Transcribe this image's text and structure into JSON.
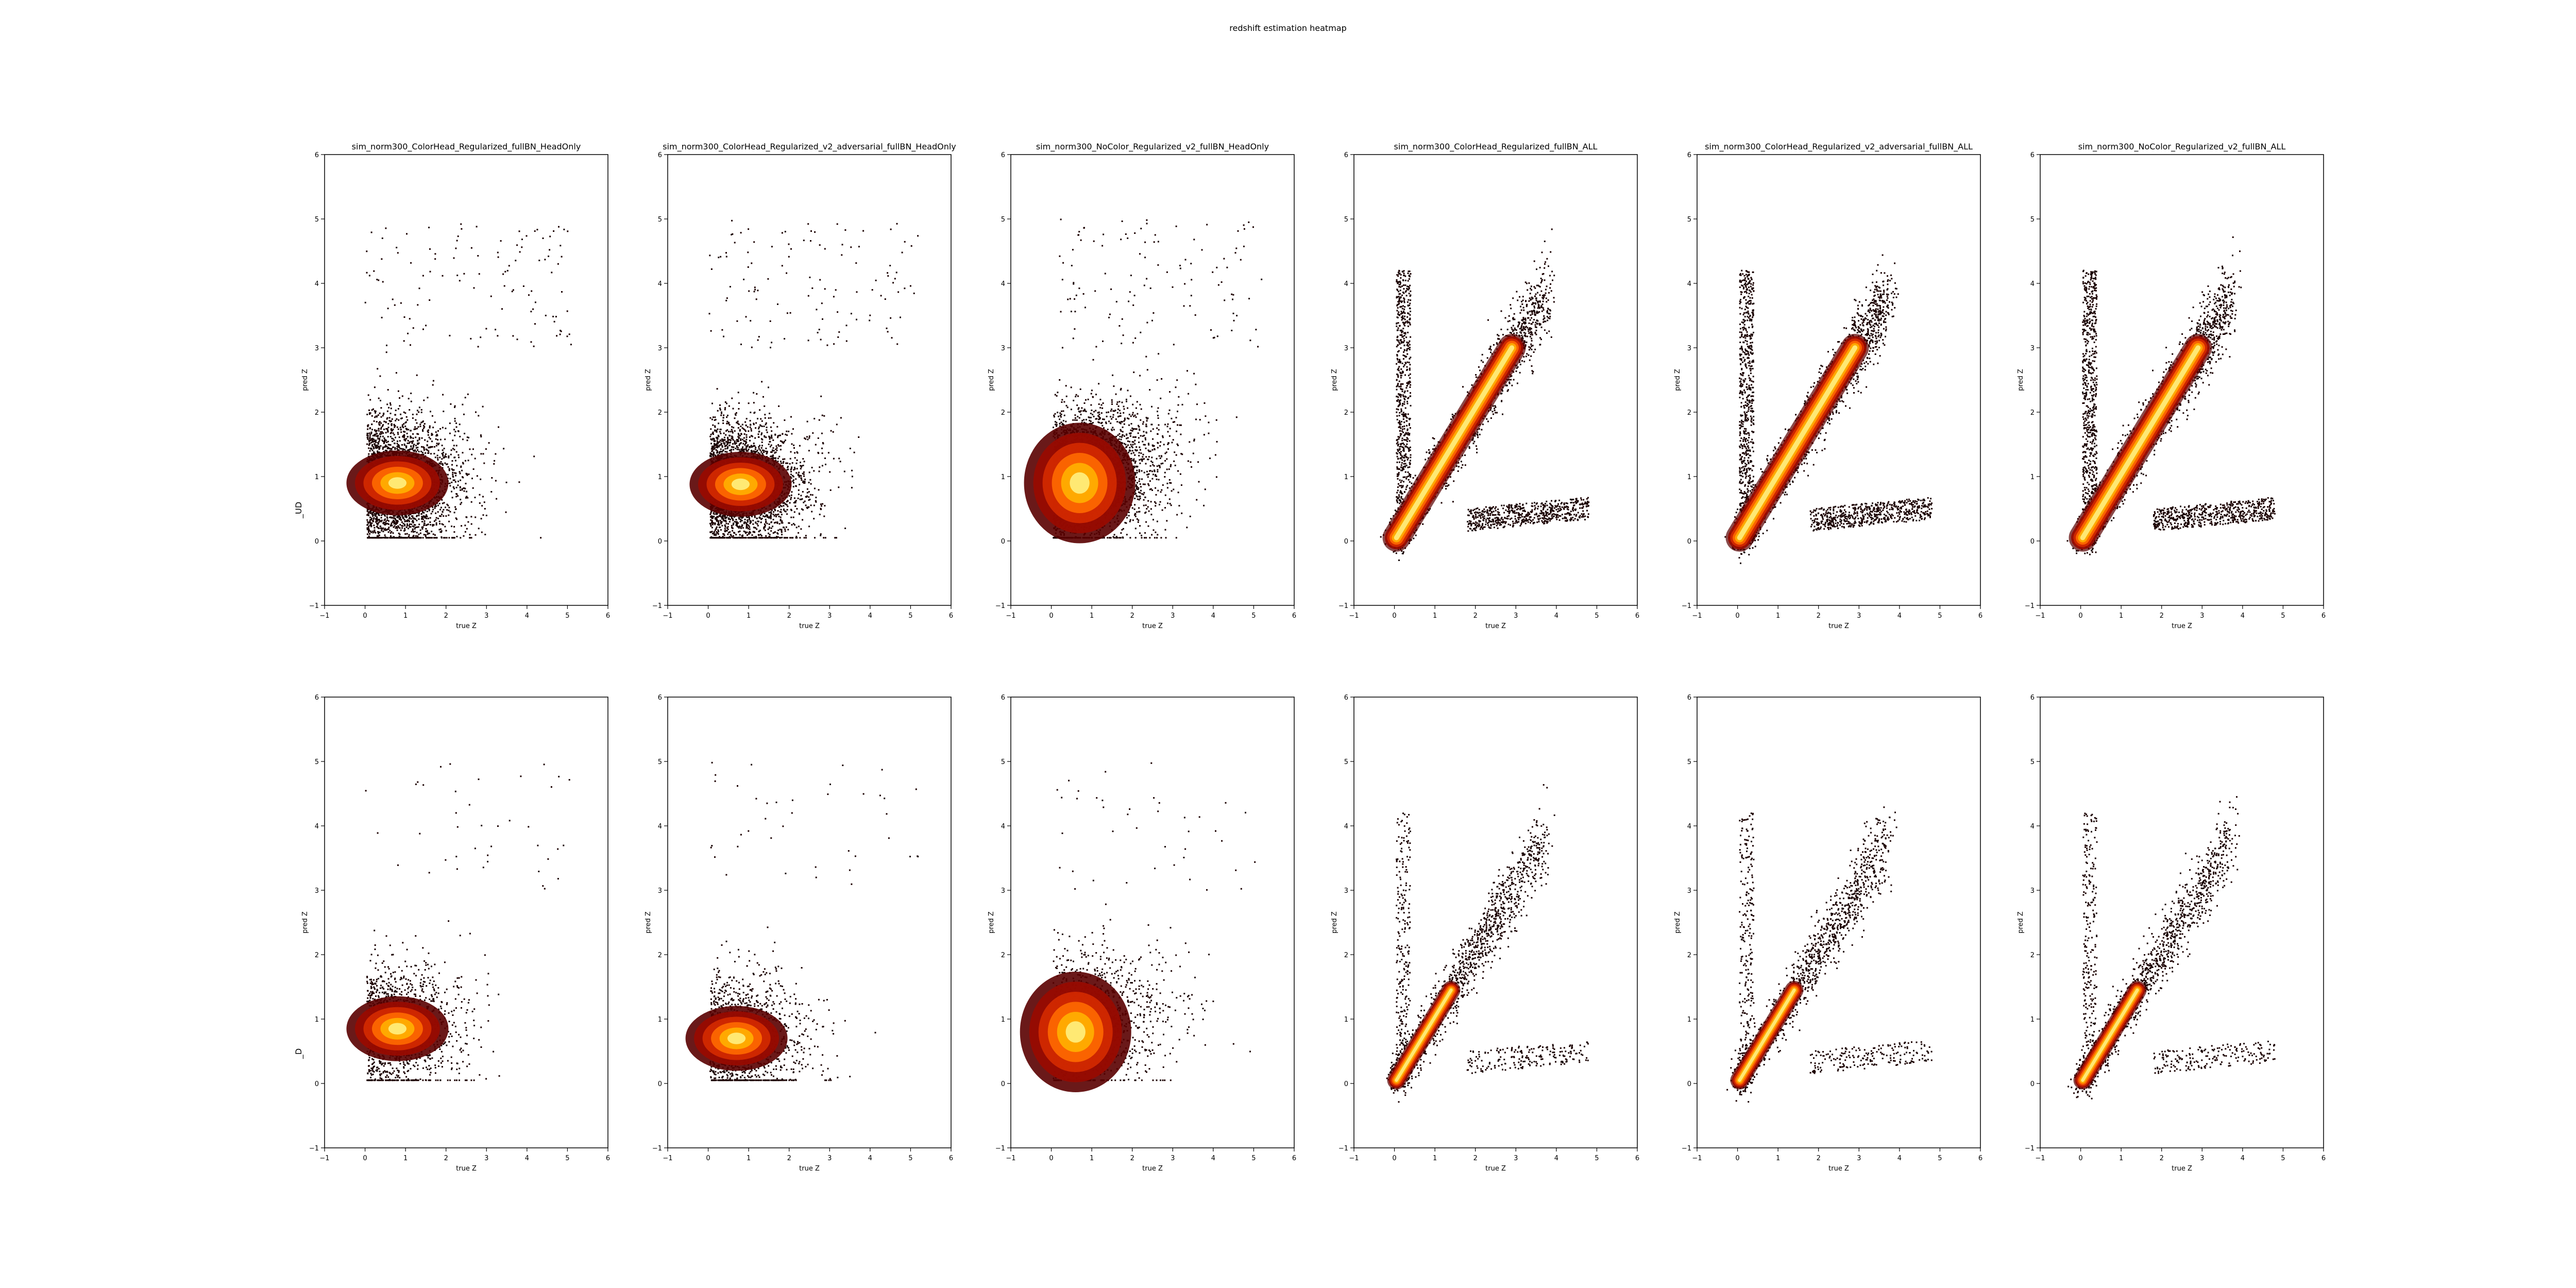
{
  "figure": {
    "suptitle": "redshift estimation heatmap",
    "row_labels": [
      "_UD",
      "_D"
    ]
  },
  "chart_data": [
    {
      "type": "heatmap",
      "row": 0,
      "col": 0,
      "title": "sim_norm300_ColorHead_Regularized_fullBN_HeadOnly",
      "xlabel": "true Z",
      "ylabel": "pred Z",
      "xlim": [
        -1,
        6
      ],
      "ylim": [
        -1,
        6
      ],
      "xticks": [
        -1,
        0,
        1,
        2,
        3,
        4,
        5,
        6
      ],
      "yticks": [
        -1,
        0,
        1,
        2,
        3,
        4,
        5,
        6
      ],
      "peak": [
        0.8,
        0.9
      ],
      "pattern": "flat-core",
      "grid": false
    },
    {
      "type": "heatmap",
      "row": 0,
      "col": 1,
      "title": "sim_norm300_ColorHead_Regularized_v2_adversarial_fullBN_HeadOnly",
      "xlabel": "true Z",
      "ylabel": "pred Z",
      "xlim": [
        -1,
        6
      ],
      "ylim": [
        -1,
        6
      ],
      "xticks": [
        -1,
        0,
        1,
        2,
        3,
        4,
        5,
        6
      ],
      "yticks": [
        -1,
        0,
        1,
        2,
        3,
        4,
        5,
        6
      ],
      "peak": [
        0.8,
        0.88
      ],
      "pattern": "flat-core",
      "grid": false
    },
    {
      "type": "heatmap",
      "row": 0,
      "col": 2,
      "title": "sim_norm300_NoColor_Regularized_v2_fullBN_HeadOnly",
      "xlabel": "true Z",
      "ylabel": "pred Z",
      "xlim": [
        -1,
        6
      ],
      "ylim": [
        -1,
        6
      ],
      "xticks": [
        -1,
        0,
        1,
        2,
        3,
        4,
        5,
        6
      ],
      "yticks": [
        -1,
        0,
        1,
        2,
        3,
        4,
        5,
        6
      ],
      "peak": [
        0.7,
        0.9
      ],
      "pattern": "broad",
      "grid": false
    },
    {
      "type": "heatmap",
      "row": 0,
      "col": 3,
      "title": "sim_norm300_ColorHead_Regularized_fullBN_ALL",
      "xlabel": "true Z",
      "ylabel": "pred Z",
      "xlim": [
        -1,
        6
      ],
      "ylim": [
        -1,
        6
      ],
      "xticks": [
        -1,
        0,
        1,
        2,
        3,
        4,
        5,
        6
      ],
      "yticks": [
        -1,
        0,
        1,
        2,
        3,
        4,
        5,
        6
      ],
      "peak": [
        0.6,
        0.6
      ],
      "pattern": "diagonal-wide",
      "grid": false
    },
    {
      "type": "heatmap",
      "row": 0,
      "col": 4,
      "title": "sim_norm300_ColorHead_Regularized_v2_adversarial_fullBN_ALL",
      "xlabel": "true Z",
      "ylabel": "pred Z",
      "xlim": [
        -1,
        6
      ],
      "ylim": [
        -1,
        6
      ],
      "xticks": [
        -1,
        0,
        1,
        2,
        3,
        4,
        5,
        6
      ],
      "yticks": [
        -1,
        0,
        1,
        2,
        3,
        4,
        5,
        6
      ],
      "peak": [
        0.6,
        0.6
      ],
      "pattern": "diagonal-wide",
      "grid": false
    },
    {
      "type": "heatmap",
      "row": 0,
      "col": 5,
      "title": "sim_norm300_NoColor_Regularized_v2_fullBN_ALL",
      "xlabel": "true Z",
      "ylabel": "pred Z",
      "xlim": [
        -1,
        6
      ],
      "ylim": [
        -1,
        6
      ],
      "xticks": [
        -1,
        0,
        1,
        2,
        3,
        4,
        5,
        6
      ],
      "yticks": [
        -1,
        0,
        1,
        2,
        3,
        4,
        5,
        6
      ],
      "peak": [
        0.6,
        0.6
      ],
      "pattern": "diagonal-wide",
      "grid": false
    },
    {
      "type": "heatmap",
      "row": 1,
      "col": 0,
      "title": "",
      "xlabel": "true Z",
      "ylabel": "pred Z",
      "xlim": [
        -1,
        6
      ],
      "ylim": [
        -1,
        6
      ],
      "xticks": [
        -1,
        0,
        1,
        2,
        3,
        4,
        5,
        6
      ],
      "yticks": [
        -1,
        0,
        1,
        2,
        3,
        4,
        5,
        6
      ],
      "peak": [
        0.8,
        0.85
      ],
      "pattern": "flat-core-sparse",
      "grid": false
    },
    {
      "type": "heatmap",
      "row": 1,
      "col": 1,
      "title": "",
      "xlabel": "true Z",
      "ylabel": "pred Z",
      "xlim": [
        -1,
        6
      ],
      "ylim": [
        -1,
        6
      ],
      "xticks": [
        -1,
        0,
        1,
        2,
        3,
        4,
        5,
        6
      ],
      "yticks": [
        -1,
        0,
        1,
        2,
        3,
        4,
        5,
        6
      ],
      "peak": [
        0.7,
        0.7
      ],
      "pattern": "flat-core-sparse",
      "grid": false
    },
    {
      "type": "heatmap",
      "row": 1,
      "col": 2,
      "title": "",
      "xlabel": "true Z",
      "ylabel": "pred Z",
      "xlim": [
        -1,
        6
      ],
      "ylim": [
        -1,
        6
      ],
      "xticks": [
        -1,
        0,
        1,
        2,
        3,
        4,
        5,
        6
      ],
      "yticks": [
        -1,
        0,
        1,
        2,
        3,
        4,
        5,
        6
      ],
      "peak": [
        0.6,
        0.8
      ],
      "pattern": "broad-sparse",
      "grid": false
    },
    {
      "type": "heatmap",
      "row": 1,
      "col": 3,
      "title": "",
      "xlabel": "true Z",
      "ylabel": "pred Z",
      "xlim": [
        -1,
        6
      ],
      "ylim": [
        -1,
        6
      ],
      "xticks": [
        -1,
        0,
        1,
        2,
        3,
        4,
        5,
        6
      ],
      "yticks": [
        -1,
        0,
        1,
        2,
        3,
        4,
        5,
        6
      ],
      "peak": [
        0.5,
        0.5
      ],
      "pattern": "diagonal-sparse",
      "grid": false
    },
    {
      "type": "heatmap",
      "row": 1,
      "col": 4,
      "title": "",
      "xlabel": "true Z",
      "ylabel": "pred Z",
      "xlim": [
        -1,
        6
      ],
      "ylim": [
        -1,
        6
      ],
      "xticks": [
        -1,
        0,
        1,
        2,
        3,
        4,
        5,
        6
      ],
      "yticks": [
        -1,
        0,
        1,
        2,
        3,
        4,
        5,
        6
      ],
      "peak": [
        0.5,
        0.5
      ],
      "pattern": "diagonal-sparse",
      "grid": false
    },
    {
      "type": "heatmap",
      "row": 1,
      "col": 5,
      "title": "",
      "xlabel": "true Z",
      "ylabel": "pred Z",
      "xlim": [
        -1,
        6
      ],
      "ylim": [
        -1,
        6
      ],
      "xticks": [
        -1,
        0,
        1,
        2,
        3,
        4,
        5,
        6
      ],
      "yticks": [
        -1,
        0,
        1,
        2,
        3,
        4,
        5,
        6
      ],
      "peak": [
        0.5,
        0.5
      ],
      "pattern": "diagonal-sparse",
      "grid": false
    }
  ]
}
